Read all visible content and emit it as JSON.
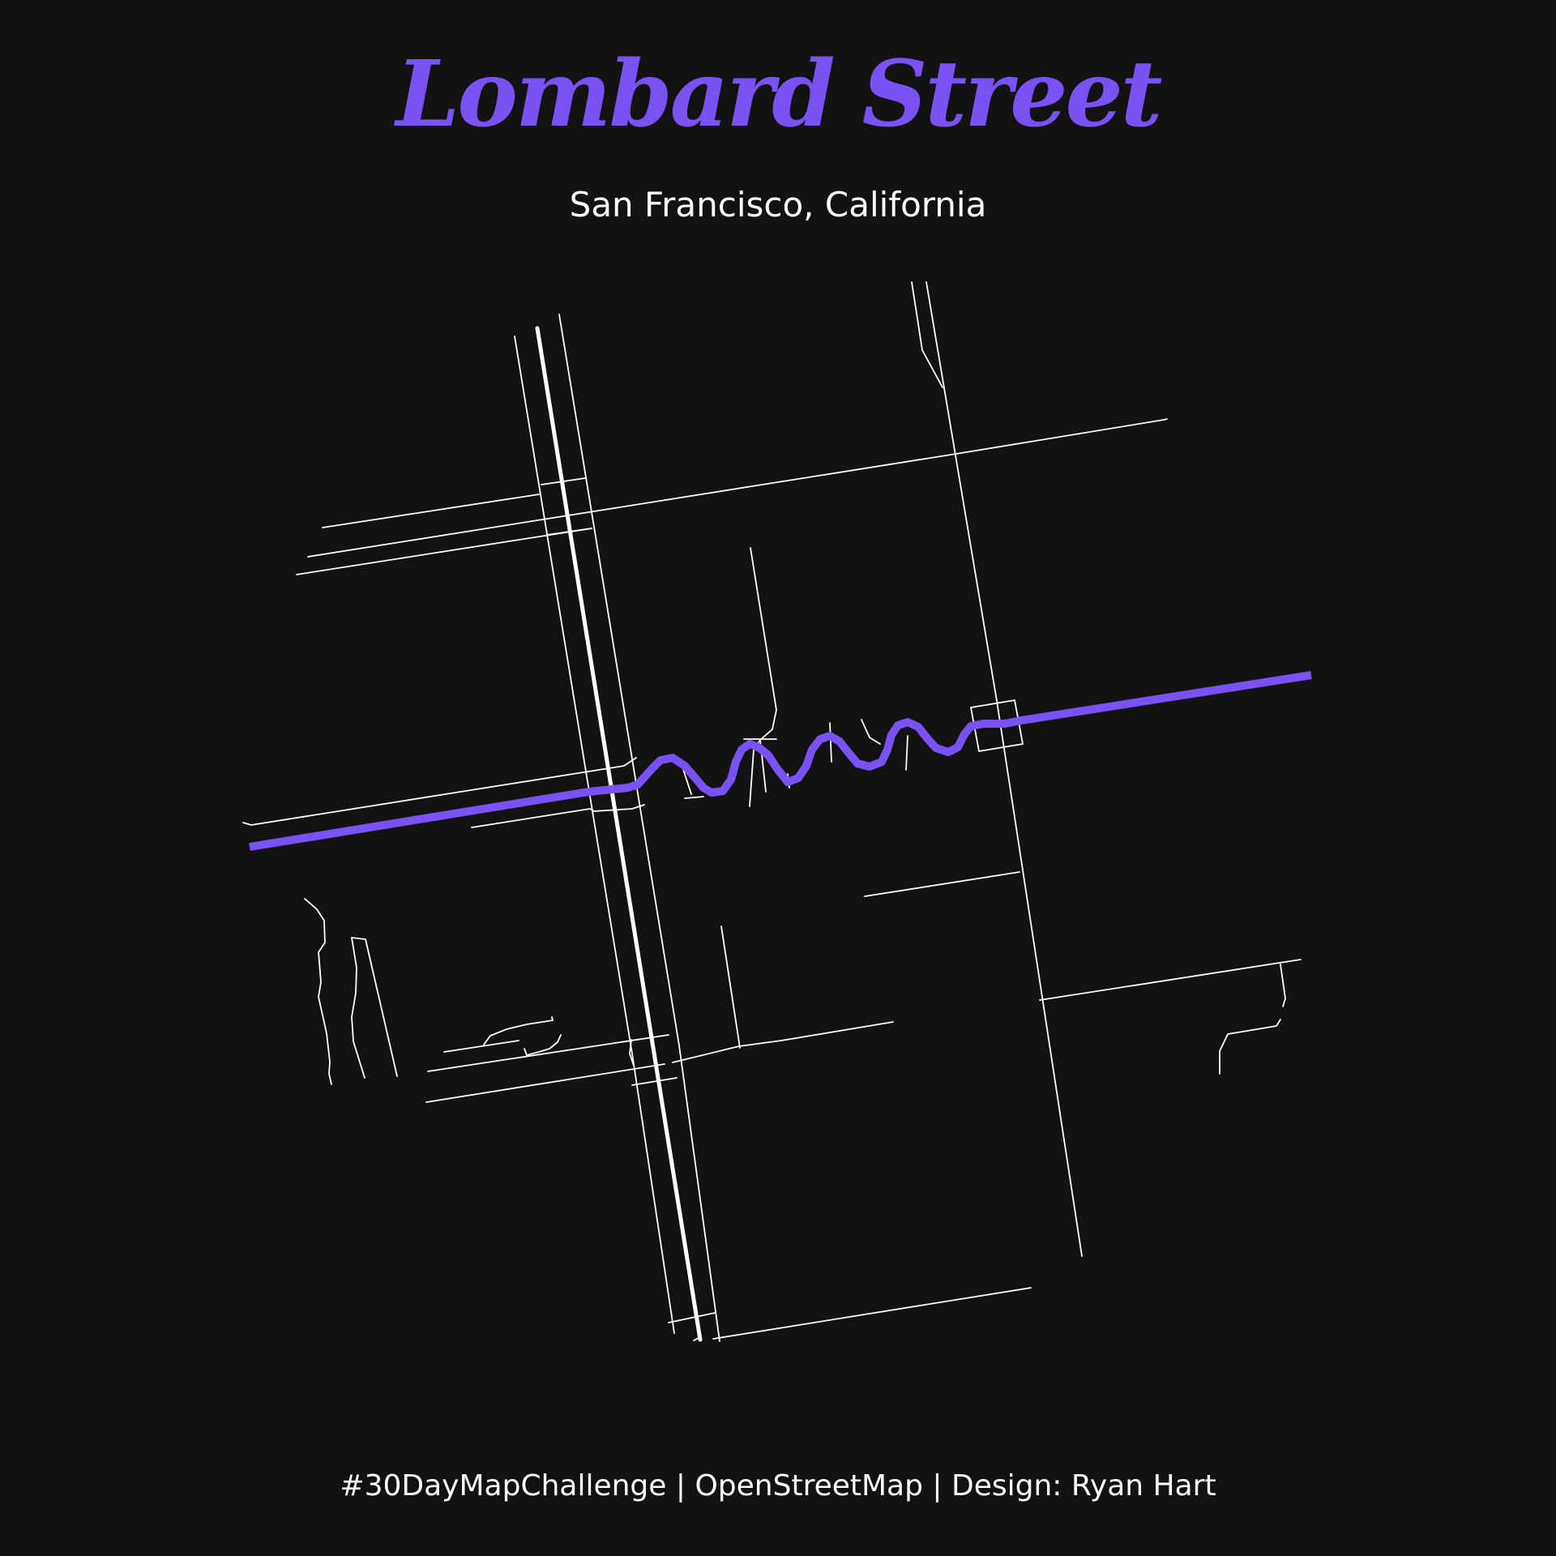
{
  "title": "Lombard Street",
  "subtitle": "San Francisco, California",
  "caption": "#30DayMapChallenge | OpenStreetMap | Design: Ryan Hart",
  "colors": {
    "background": "#121212",
    "accent": "#7a51f2",
    "roads": "#ffffff",
    "text": "#ffffff"
  },
  "map": {
    "highlighted_street": "Lombard Street",
    "layers": [
      "street-network",
      "highlighted-street"
    ]
  }
}
